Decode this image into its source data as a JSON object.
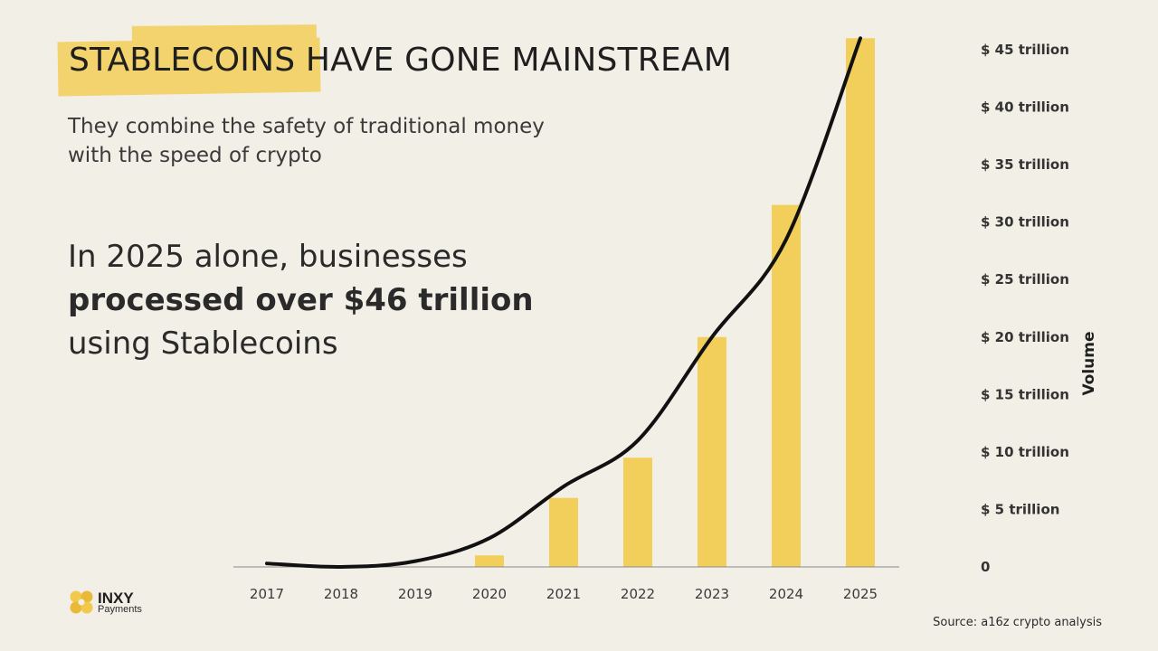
{
  "title": "STABLECOINS HAVE GONE MAINSTREAM",
  "subtitle_line1": "They combine the safety of traditional money",
  "subtitle_line2": "with the speed of crypto",
  "headline": {
    "part1": "In 2025 alone, businesses",
    "part2_bold": "processed over $46 trillion",
    "part3": "using Stablecoins"
  },
  "logo": {
    "name": "INXY",
    "sub": "Payments"
  },
  "source": "Source: a16z crypto analysis",
  "colors": {
    "bar": "#f2ce5b",
    "line": "#111111",
    "highlight": "#f3d36d",
    "background": "#f2efe6"
  },
  "chart_data": {
    "type": "bar",
    "categories": [
      "2017",
      "2018",
      "2019",
      "2020",
      "2021",
      "2022",
      "2023",
      "2024",
      "2025"
    ],
    "values": [
      0,
      0,
      0,
      1,
      6,
      9.5,
      20,
      31.5,
      46
    ],
    "trend_line": [
      0.3,
      0,
      0.5,
      2.5,
      7,
      11,
      20,
      28.5,
      46
    ],
    "ylabel": "Volume",
    "ylim": [
      0,
      45
    ],
    "yticks": [
      {
        "value": 0,
        "label": "0"
      },
      {
        "value": 5,
        "label": "$ 5 trillion"
      },
      {
        "value": 10,
        "label": "$ 10 trillion"
      },
      {
        "value": 15,
        "label": "$ 15 trillion"
      },
      {
        "value": 20,
        "label": "$ 20 trillion"
      },
      {
        "value": 25,
        "label": "$ 25 trillion"
      },
      {
        "value": 30,
        "label": "$ 30 trillion"
      },
      {
        "value": 35,
        "label": "$ 35 trillion"
      },
      {
        "value": 40,
        "label": "$ 40 trillion"
      },
      {
        "value": 45,
        "label": "$ 45 trillion"
      }
    ],
    "grid": false,
    "legend": "none"
  }
}
